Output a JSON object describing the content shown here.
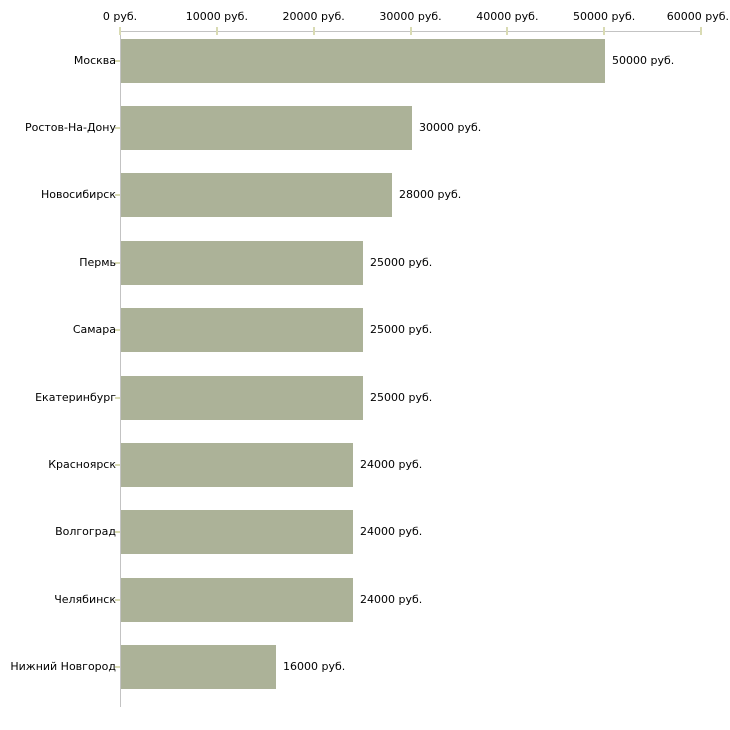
{
  "chart_data": {
    "type": "bar",
    "orientation": "horizontal",
    "title": "",
    "xlabel": "",
    "ylabel": "",
    "categories": [
      "Москва",
      "Ростов-На-Дону",
      "Новосибирск",
      "Пермь",
      "Самара",
      "Екатеринбург",
      "Красноярск",
      "Волгоград",
      "Челябинск",
      "Нижний Новгород"
    ],
    "values": [
      50000,
      30000,
      28000,
      25000,
      25000,
      25000,
      24000,
      24000,
      24000,
      16000
    ],
    "bar_value_labels": [
      "50000 руб.",
      "30000 руб.",
      "28000 руб.",
      "25000 руб.",
      "25000 руб.",
      "25000 руб.",
      "24000 руб.",
      "24000 руб.",
      "24000 руб.",
      "16000 руб."
    ],
    "x_axis": {
      "position": "top",
      "range": [
        0,
        60000
      ],
      "tick_values": [
        0,
        10000,
        20000,
        30000,
        40000,
        50000,
        60000
      ],
      "tick_labels": [
        "0 руб.",
        "10000 руб.",
        "20000 руб.",
        "30000 руб.",
        "40000 руб.",
        "50000 руб.",
        "60000 руб."
      ]
    },
    "grid": false,
    "legend": false,
    "colors": {
      "bar": "#acb298",
      "axis_line": "#c3c3c3",
      "tick_mark": "#d9dbb3",
      "text": "#000000",
      "background": "#ffffff"
    }
  }
}
